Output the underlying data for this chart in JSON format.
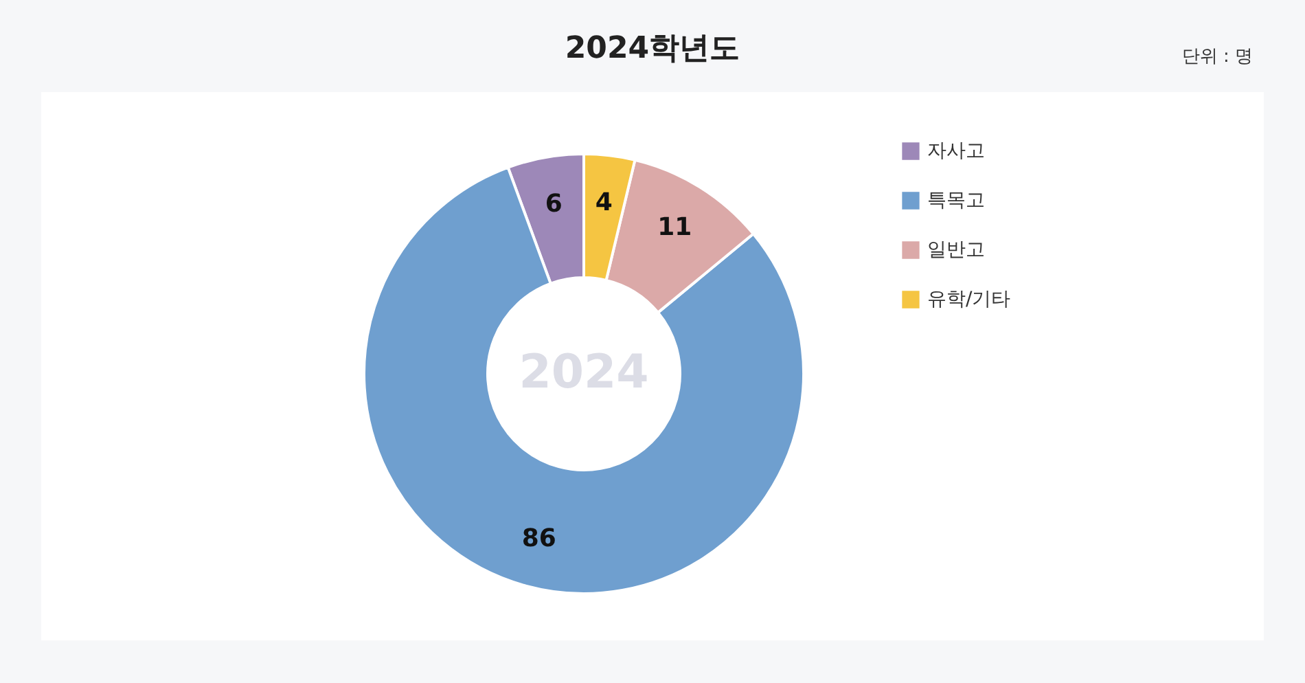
{
  "chart_data": {
    "type": "donut",
    "title": "2024학년도",
    "annotations": [
      "단위 : 명",
      "2024"
    ],
    "categories": [
      "자사고",
      "특목고",
      "일반고",
      "유학/기타"
    ],
    "values": [
      6,
      86,
      11,
      4
    ],
    "colors": [
      "#9d88b8",
      "#6f9fcf",
      "#dba9a8",
      "#f5c542"
    ],
    "data_labels": true,
    "legend": "right"
  }
}
